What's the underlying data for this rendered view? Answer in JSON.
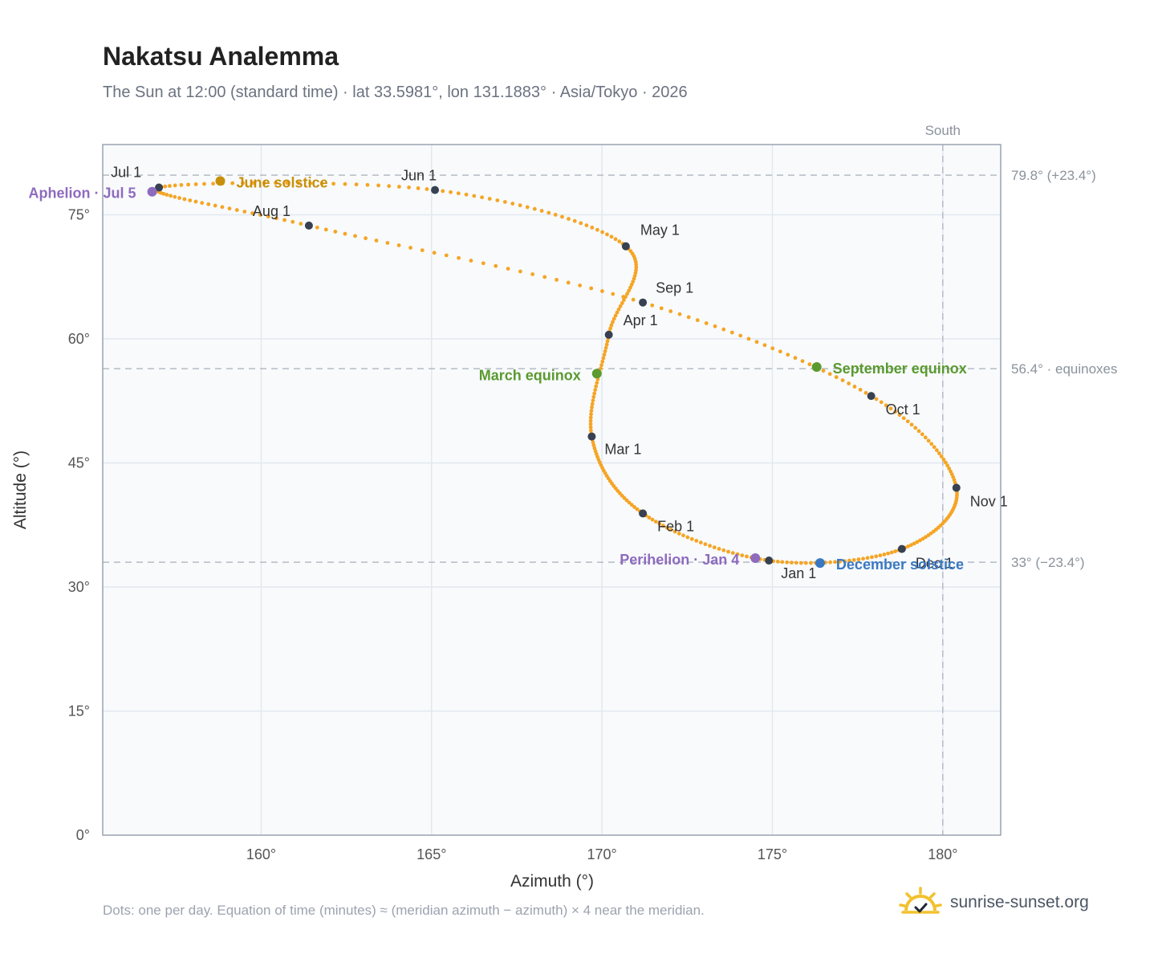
{
  "header": {
    "title": "Nakatsu Analemma",
    "subtitle": "The Sun at 12:00 (standard time) · lat 33.5981°, lon 131.1883° · Asia/Tokyo · 2026"
  },
  "footer": {
    "note": "Dots: one per day. Equation of time (minutes) ≈ (meridian azimuth − azimuth) × 4 near the meridian.",
    "brand": "sunrise-sunset.org"
  },
  "colors": {
    "curve": "#f5a524",
    "month_marker": "#374151",
    "solstice_june": "#c8900a",
    "solstice_december": "#3a78c2",
    "equinox": "#5a9a2f",
    "apsis": "#8e6bbf",
    "plot_bg": "#f8fafc",
    "grid": "#e2e8f0",
    "frame": "#9aa3b2",
    "ref_line": "#b4bcc4"
  },
  "chart_data": {
    "type": "scatter",
    "xlabel": "Azimuth (°)",
    "ylabel": "Altitude (°)",
    "xlim": [
      155.35,
      181.7
    ],
    "ylim": [
      0,
      83.5
    ],
    "x_ticks": [
      160,
      165,
      170,
      175,
      180
    ],
    "x_tick_labels": [
      "160°",
      "165°",
      "170°",
      "175°",
      "180°"
    ],
    "y_ticks": [
      0,
      15,
      30,
      45,
      60,
      75
    ],
    "y_tick_labels": [
      "0°",
      "15°",
      "30°",
      "45°",
      "60°",
      "75°"
    ],
    "grid": true,
    "meridian": {
      "azimuth": 180,
      "label": "South"
    },
    "reference_lines": [
      {
        "altitude": 79.8,
        "label": "79.8° (+23.4°)"
      },
      {
        "altitude": 56.4,
        "label": "56.4° · equinoxes"
      },
      {
        "altitude": 33.0,
        "label": "33° (−23.4°)"
      }
    ],
    "month_markers": [
      {
        "label": "Jan 1",
        "az": 174.9,
        "alt": 33.2
      },
      {
        "label": "Feb 1",
        "az": 171.2,
        "alt": 38.9
      },
      {
        "label": "Mar 1",
        "az": 169.7,
        "alt": 48.2
      },
      {
        "label": "Apr 1",
        "az": 170.2,
        "alt": 60.5
      },
      {
        "label": "May 1",
        "az": 170.7,
        "alt": 71.2
      },
      {
        "label": "Jun 1",
        "az": 165.1,
        "alt": 78.0
      },
      {
        "label": "Jul 1",
        "az": 157.0,
        "alt": 78.3
      },
      {
        "label": "Aug 1",
        "az": 161.4,
        "alt": 73.7
      },
      {
        "label": "Sep 1",
        "az": 171.2,
        "alt": 64.4
      },
      {
        "label": "Oct 1",
        "az": 177.9,
        "alt": 53.1
      },
      {
        "label": "Nov 1",
        "az": 180.4,
        "alt": 42.0
      },
      {
        "label": "Dec 1",
        "az": 178.8,
        "alt": 34.6
      }
    ],
    "events": [
      {
        "label": "June solstice",
        "az": 158.8,
        "alt": 79.1,
        "kind": "solstice_june"
      },
      {
        "label": "December solstice",
        "az": 176.4,
        "alt": 32.9,
        "kind": "solstice_december"
      },
      {
        "label": "March equinox",
        "az": 169.85,
        "alt": 55.8,
        "kind": "equinox"
      },
      {
        "label": "September equinox",
        "az": 176.3,
        "alt": 56.6,
        "kind": "equinox"
      },
      {
        "label": "Aphelion · Jul 5",
        "az": 156.8,
        "alt": 77.8,
        "kind": "apsis"
      },
      {
        "label": "Perihelion · Jan 4",
        "az": 174.5,
        "alt": 33.5,
        "kind": "apsis"
      }
    ]
  }
}
